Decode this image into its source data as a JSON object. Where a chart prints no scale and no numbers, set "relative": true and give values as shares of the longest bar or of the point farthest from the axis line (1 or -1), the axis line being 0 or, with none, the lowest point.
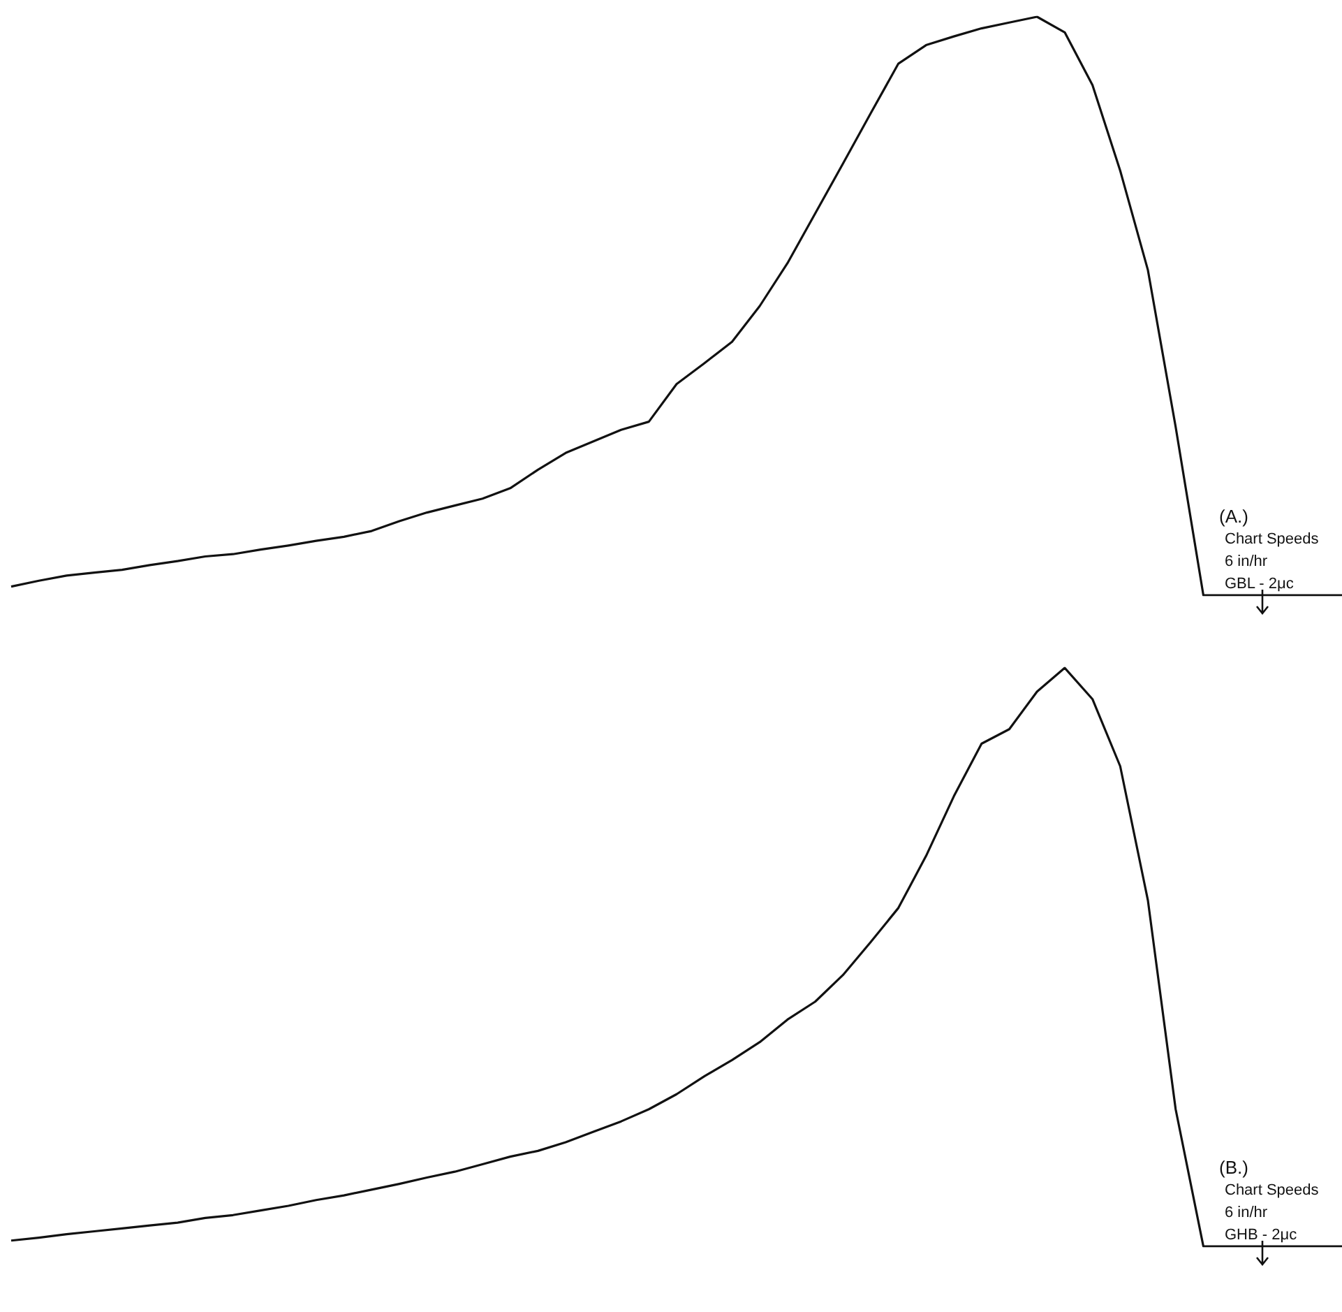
{
  "chart_data": [
    {
      "type": "line",
      "relative": true,
      "categories": [
        null,
        null,
        null,
        null,
        null,
        null,
        null,
        null,
        null,
        null,
        null,
        null,
        null,
        null,
        null,
        null,
        null,
        null,
        null,
        null,
        null,
        null,
        null,
        null,
        null,
        null,
        null,
        null,
        null,
        null,
        null,
        null,
        null,
        null,
        null,
        null,
        null,
        null,
        null,
        null,
        null,
        null,
        null,
        null,
        null,
        null,
        null,
        null,
        null
      ],
      "series": [
        {
          "color": "#111111",
          "values": [
            0.015,
            0.025,
            0.034,
            0.039,
            0.044,
            0.052,
            0.059,
            0.067,
            0.071,
            0.079,
            0.086,
            0.094,
            0.101,
            0.111,
            0.128,
            0.143,
            0.155,
            0.167,
            0.185,
            0.217,
            0.246,
            0.266,
            0.286,
            0.3,
            0.365,
            0.401,
            0.438,
            0.5,
            0.574,
            0.66,
            0.746,
            0.833,
            0.919,
            0.951,
            0.966,
            0.98,
            0.99,
            1,
            0.973,
            0.882,
            0.734,
            0.562,
            0.291,
            0,
            0,
            0,
            0,
            0,
            0
          ]
        }
      ],
      "annotations": [
        "(A.)",
        "Chart Speeds",
        "6 in/hr",
        "GBL - 2μc"
      ]
    },
    {
      "type": "line",
      "relative": true,
      "categories": [
        null,
        null,
        null,
        null,
        null,
        null,
        null,
        null,
        null,
        null,
        null,
        null,
        null,
        null,
        null,
        null,
        null,
        null,
        null,
        null,
        null,
        null,
        null,
        null,
        null,
        null,
        null,
        null,
        null,
        null,
        null,
        null,
        null,
        null,
        null,
        null,
        null,
        null,
        null,
        null,
        null,
        null,
        null,
        null,
        null,
        null,
        null,
        null,
        null
      ],
      "series": [
        {
          "color": "#111111",
          "values": [
            0.01,
            0.015,
            0.021,
            0.026,
            0.031,
            0.036,
            0.041,
            0.049,
            0.054,
            0.062,
            0.07,
            0.08,
            0.088,
            0.098,
            0.108,
            0.119,
            0.129,
            0.142,
            0.155,
            0.165,
            0.18,
            0.198,
            0.216,
            0.237,
            0.263,
            0.294,
            0.322,
            0.353,
            0.392,
            0.423,
            0.469,
            0.526,
            0.585,
            0.675,
            0.778,
            0.869,
            0.894,
            0.959,
            1,
            0.946,
            0.83,
            0.598,
            0.237,
            0,
            0,
            0,
            0,
            0,
            0
          ]
        }
      ],
      "annotations": [
        "(B.)",
        "Chart Speeds",
        "6 in/hr",
        "GHB - 2μc"
      ]
    }
  ]
}
